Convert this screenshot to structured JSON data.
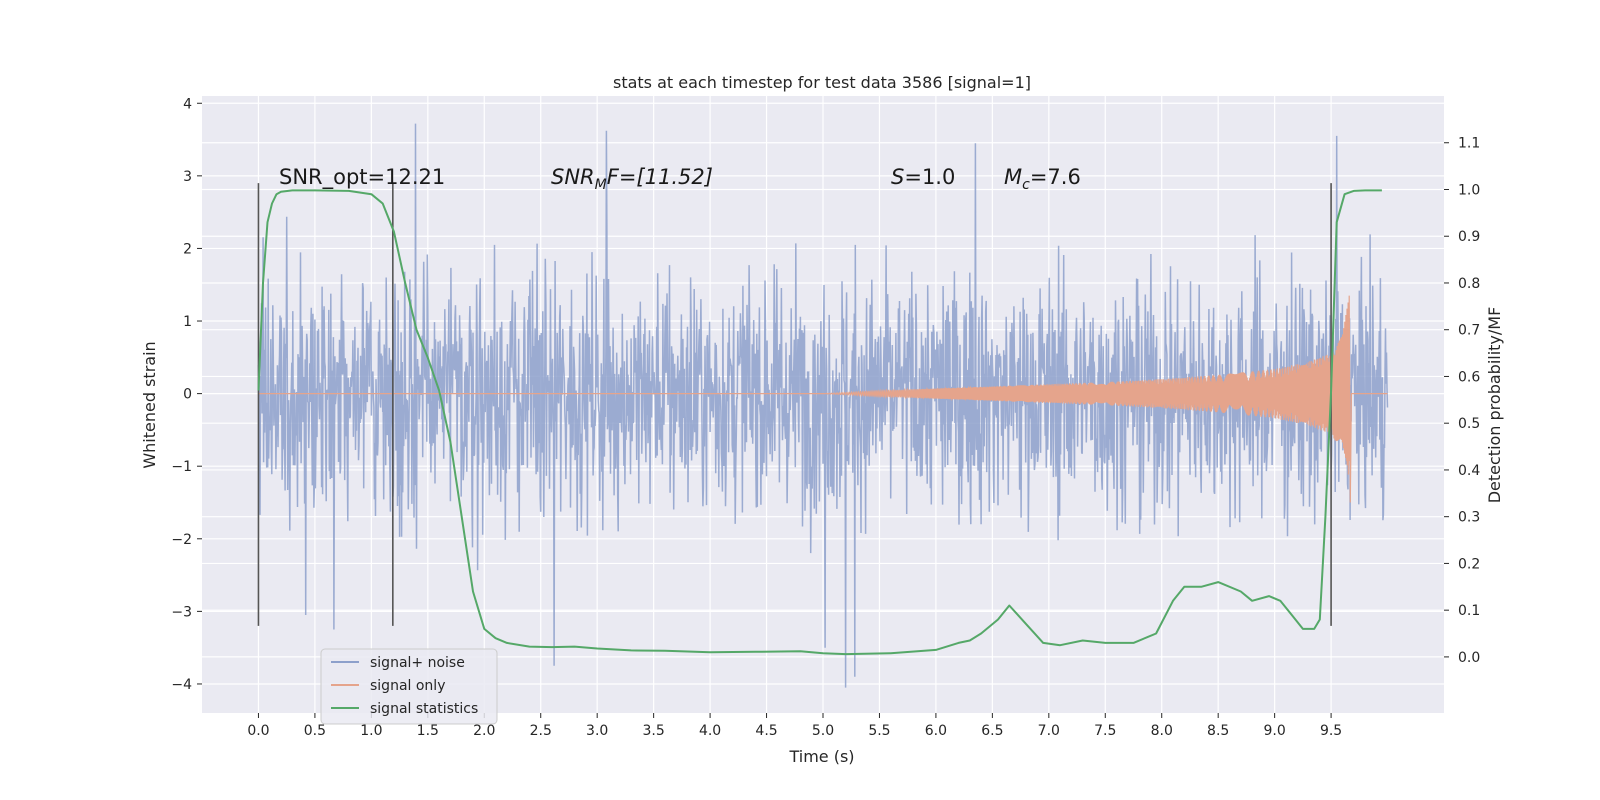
{
  "chart_data": {
    "type": "line",
    "title": "stats at each timestep for test data 3586 [signal=1]",
    "xlabel": "Time (s)",
    "ylabel": "Whitened strain",
    "y2label": "Detection probability/MF",
    "xlim": [
      -0.5,
      10.5
    ],
    "ylim": [
      -4.4,
      4.1
    ],
    "y2lim": [
      -0.12,
      1.2
    ],
    "x_ticks": [
      0.0,
      0.5,
      1.0,
      1.5,
      2.0,
      2.5,
      3.0,
      3.5,
      4.0,
      4.5,
      5.0,
      5.5,
      6.0,
      6.5,
      7.0,
      7.5,
      8.0,
      8.5,
      9.0,
      9.5
    ],
    "x_tick_labels": [
      "0.0",
      "0.5",
      "1.0",
      "1.5",
      "2.0",
      "2.5",
      "3.0",
      "3.5",
      "4.0",
      "4.5",
      "5.0",
      "5.5",
      "6.0",
      "6.5",
      "7.0",
      "7.5",
      "8.0",
      "8.5",
      "9.0",
      "9.5"
    ],
    "y_ticks": [
      -4,
      -3,
      -2,
      -1,
      0,
      1,
      2,
      3,
      4
    ],
    "y_tick_labels": [
      "−4",
      "−3",
      "−2",
      "−1",
      "0",
      "1",
      "2",
      "3",
      "4"
    ],
    "y2_ticks": [
      0.0,
      0.1,
      0.2,
      0.3,
      0.4,
      0.5,
      0.6,
      0.7,
      0.8,
      0.9,
      1.0,
      1.1
    ],
    "y2_tick_labels": [
      "0.0",
      "0.1",
      "0.2",
      "0.3",
      "0.4",
      "0.5",
      "0.6",
      "0.7",
      "0.8",
      "0.9",
      "1.0",
      "1.1"
    ],
    "grid": true,
    "legend": {
      "placement": "lower-left",
      "entries": [
        "signal+ noise",
        "signal only",
        "signal statistics"
      ]
    },
    "annotations": {
      "snr_opt": "SNR_opt=12.21",
      "snr_mf_main": "SNR",
      "snr_mf_sub": "M",
      "snr_mf_rest": "F=[11.52]",
      "s_main": "S",
      "s_rest": "=1.0",
      "mc_main": "M",
      "mc_sub": "c",
      "mc_rest": "=7.6"
    },
    "vertical_lines_x": [
      0.0,
      1.19,
      9.5
    ],
    "vertical_lines_yrange": [
      -3.2,
      2.9
    ],
    "series": [
      {
        "name": "signal+ noise",
        "color": "#8da0cb",
        "time_range": [
          0.0,
          10.0
        ],
        "noise_envelope": {
          "typical_amplitude": 1.6,
          "extreme_max": 3.72,
          "extreme_min": -4.05,
          "peaks": [
            {
              "x": 1.39,
              "y": 3.72
            },
            {
              "x": 3.08,
              "y": 3.62
            },
            {
              "x": 6.35,
              "y": 3.45
            },
            {
              "x": 9.55,
              "y": 3.55
            },
            {
              "x": 5.2,
              "y": -4.05
            },
            {
              "x": 2.62,
              "y": -3.75
            },
            {
              "x": 5.28,
              "y": -3.9
            },
            {
              "x": 5.02,
              "y": -3.5
            },
            {
              "x": 0.42,
              "y": -3.05
            },
            {
              "x": 0.67,
              "y": -3.25
            }
          ]
        }
      },
      {
        "name": "signal only",
        "color": "#e5a48c",
        "chirp": {
          "start_x": 5.0,
          "merger_x": 9.67,
          "end_x": 10.0,
          "amplitude_at": [
            [
              5.0,
              0.0
            ],
            [
              5.5,
              0.04
            ],
            [
              6.0,
              0.07
            ],
            [
              6.5,
              0.1
            ],
            [
              7.0,
              0.13
            ],
            [
              7.5,
              0.16
            ],
            [
              8.0,
              0.2
            ],
            [
              8.5,
              0.26
            ],
            [
              9.0,
              0.34
            ],
            [
              9.3,
              0.44
            ],
            [
              9.5,
              0.56
            ],
            [
              9.6,
              0.8
            ],
            [
              9.66,
              1.35
            ],
            [
              9.67,
              -1.5
            ]
          ]
        }
      },
      {
        "name": "signal statistics",
        "color": "#55a868",
        "x": [
          0.0,
          0.04,
          0.08,
          0.12,
          0.16,
          0.2,
          0.3,
          0.5,
          0.8,
          1.0,
          1.1,
          1.2,
          1.3,
          1.4,
          1.5,
          1.6,
          1.7,
          1.8,
          1.9,
          2.0,
          2.1,
          2.2,
          2.4,
          2.6,
          2.8,
          3.0,
          3.3,
          3.6,
          4.0,
          4.4,
          4.8,
          5.0,
          5.2,
          5.6,
          6.0,
          6.2,
          6.3,
          6.4,
          6.55,
          6.65,
          6.8,
          6.95,
          7.1,
          7.3,
          7.5,
          7.75,
          7.95,
          8.1,
          8.2,
          8.35,
          8.5,
          8.7,
          8.8,
          8.95,
          9.05,
          9.15,
          9.25,
          9.35,
          9.4,
          9.45,
          9.5,
          9.55,
          9.62,
          9.7,
          9.8,
          9.9,
          9.95
        ],
        "values": [
          0.57,
          0.8,
          0.93,
          0.97,
          0.99,
          0.995,
          0.998,
          0.998,
          0.997,
          0.99,
          0.97,
          0.91,
          0.8,
          0.7,
          0.64,
          0.57,
          0.46,
          0.3,
          0.14,
          0.06,
          0.04,
          0.03,
          0.022,
          0.021,
          0.022,
          0.018,
          0.014,
          0.013,
          0.01,
          0.011,
          0.012,
          0.008,
          0.006,
          0.008,
          0.015,
          0.03,
          0.035,
          0.05,
          0.08,
          0.11,
          0.07,
          0.03,
          0.025,
          0.035,
          0.03,
          0.03,
          0.05,
          0.12,
          0.15,
          0.15,
          0.16,
          0.14,
          0.12,
          0.13,
          0.12,
          0.09,
          0.06,
          0.06,
          0.08,
          0.3,
          0.57,
          0.93,
          0.99,
          0.997,
          0.998,
          0.998,
          0.998
        ]
      }
    ]
  }
}
